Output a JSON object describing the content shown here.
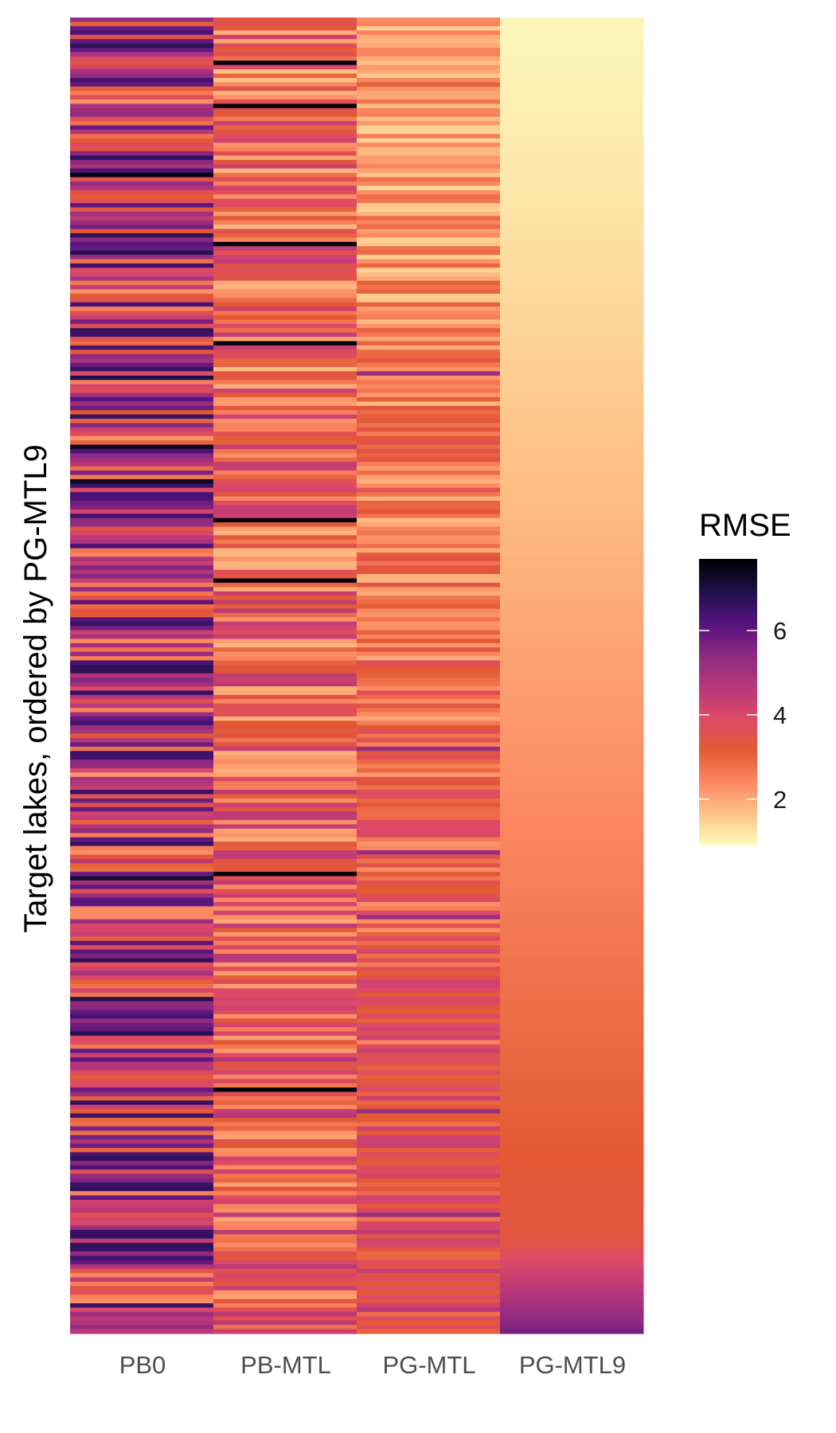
{
  "chart_data": {
    "type": "heatmap",
    "columns": [
      "PB0",
      "PB-MTL",
      "PG-MTL",
      "PG-MTL9"
    ],
    "ylabel": "Target lakes, ordered by PG-MTL9",
    "legend": {
      "title": "RMSE",
      "ticks": [
        2,
        4,
        6
      ],
      "range": [
        0.9,
        7.7
      ],
      "placement": "right",
      "colors": [
        "#fcfdbf",
        "#fec287",
        "#fb8761",
        "#e35933",
        "#de4968",
        "#b73779",
        "#8c2981",
        "#51127c",
        "#1d1147",
        "#000004"
      ]
    },
    "row_count": 305,
    "rows_by_column": {
      "PB0": "rows are randomly distributed with values mostly between 2.0 and 7.5 (generated by script)",
      "PB-MTL": "rows mostly between 1.5 and 5.0 with occasional outliers up to 7.5",
      "PG-MTL": "rows mostly between 1.0 and 4.5, higher near the bottom",
      "PG-MTL9": "monotonic increase from about 1.0 at the top to about 6.3 at the bottom"
    },
    "grid": false
  }
}
